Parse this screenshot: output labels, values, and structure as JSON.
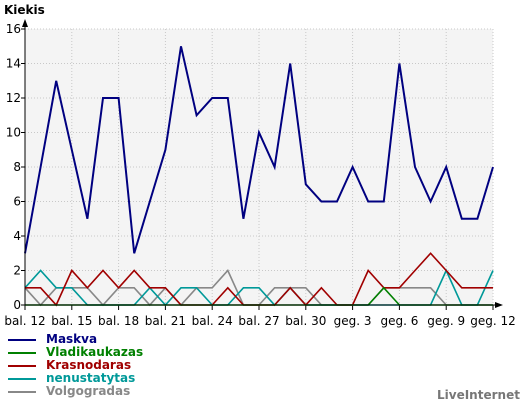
{
  "chart_data": {
    "type": "line",
    "ylabel": "Kiekis",
    "ylim": [
      0,
      16
    ],
    "yticks": [
      0,
      2,
      4,
      6,
      8,
      10,
      12,
      14,
      16
    ],
    "x_tick_labels": [
      "bal. 12",
      "bal. 15",
      "bal. 18",
      "bal. 21",
      "bal. 24",
      "bal. 27",
      "bal. 30",
      "geg. 3",
      "geg. 6",
      "geg. 9",
      "geg. 12"
    ],
    "grid": true,
    "background": "#f4f4f4",
    "series": [
      {
        "name": "Maskva",
        "color": "#000080",
        "values": [
          3,
          8,
          13,
          9,
          5,
          12,
          12,
          3,
          6,
          9,
          15,
          11,
          12,
          12,
          5,
          10,
          8,
          14,
          7,
          6,
          6,
          8,
          6,
          6,
          14,
          8,
          6,
          8,
          5,
          5,
          8
        ]
      },
      {
        "name": "Vladikaukazas",
        "color": "#008000",
        "values": [
          0,
          0,
          0,
          0,
          0,
          0,
          0,
          0,
          0,
          0,
          0,
          0,
          0,
          0,
          0,
          0,
          0,
          0,
          0,
          0,
          0,
          0,
          0,
          1,
          0,
          0,
          0,
          0,
          0,
          0,
          0
        ]
      },
      {
        "name": "Krasnodaras",
        "color": "#a00000",
        "values": [
          1,
          1,
          0,
          2,
          1,
          2,
          1,
          2,
          1,
          1,
          0,
          0,
          0,
          1,
          0,
          0,
          0,
          1,
          0,
          1,
          0,
          0,
          2,
          1,
          1,
          2,
          3,
          2,
          1,
          1,
          1
        ]
      },
      {
        "name": "nenustatytas",
        "color": "#009999",
        "values": [
          1,
          2,
          1,
          1,
          0,
          0,
          0,
          0,
          1,
          0,
          1,
          1,
          0,
          0,
          1,
          1,
          0,
          1,
          0,
          0,
          0,
          0,
          0,
          0,
          0,
          0,
          0,
          2,
          0,
          0,
          2
        ]
      },
      {
        "name": "Volgogradas",
        "color": "#888888",
        "values": [
          1,
          0,
          1,
          1,
          1,
          0,
          1,
          1,
          0,
          1,
          0,
          1,
          1,
          2,
          0,
          0,
          1,
          1,
          1,
          0,
          0,
          0,
          0,
          1,
          1,
          1,
          1,
          0,
          0,
          0,
          0
        ]
      }
    ]
  },
  "watermark": "LiveInternet"
}
